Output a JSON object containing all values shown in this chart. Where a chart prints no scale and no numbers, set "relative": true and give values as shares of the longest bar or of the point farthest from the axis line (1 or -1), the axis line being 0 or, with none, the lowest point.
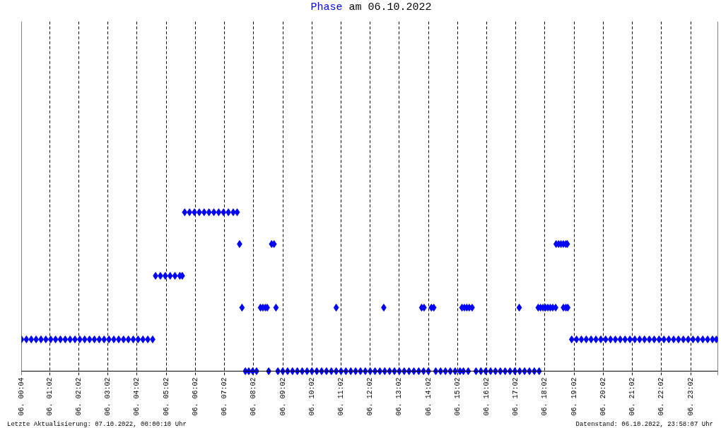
{
  "chart_data": {
    "type": "scatter",
    "title": "Phase am 06.10.2022",
    "annotations": [
      "Letzte Aktualisierung: 07.10.2022, 00:00:10 Uhr",
      "Datenstand: 06.10.2022, 23:58:07 Uhr"
    ],
    "relative": true,
    "grid": "x",
    "marker": "diamond",
    "xlim": [
      "2022-10-06T00:04",
      "2022-10-06T23:58"
    ],
    "xticks": [
      {
        "value": "2022-10-06T00:04",
        "label": "06. 00:04"
      },
      {
        "value": "2022-10-06T01:02",
        "label": "06. 01:02"
      },
      {
        "value": "2022-10-06T02:02",
        "label": "06. 02:02"
      },
      {
        "value": "2022-10-06T03:02",
        "label": "06. 03:02"
      },
      {
        "value": "2022-10-06T04:02",
        "label": "06. 04:02"
      },
      {
        "value": "2022-10-06T05:02",
        "label": "06. 05:02"
      },
      {
        "value": "2022-10-06T06:02",
        "label": "06. 06:02"
      },
      {
        "value": "2022-10-06T07:02",
        "label": "06. 07:02"
      },
      {
        "value": "2022-10-06T08:02",
        "label": "06. 08:02"
      },
      {
        "value": "2022-10-06T09:02",
        "label": "06. 09:02"
      },
      {
        "value": "2022-10-06T10:02",
        "label": "06. 10:02"
      },
      {
        "value": "2022-10-06T11:02",
        "label": "06. 11:02"
      },
      {
        "value": "2022-10-06T12:02",
        "label": "06. 12:02"
      },
      {
        "value": "2022-10-06T13:02",
        "label": "06. 13:02"
      },
      {
        "value": "2022-10-06T14:02",
        "label": "06. 14:02"
      },
      {
        "value": "2022-10-06T15:02",
        "label": "06. 15:02"
      },
      {
        "value": "2022-10-06T16:02",
        "label": "06. 16:02"
      },
      {
        "value": "2022-10-06T17:02",
        "label": "06. 17:02"
      },
      {
        "value": "2022-10-06T18:02",
        "label": "06. 18:02"
      },
      {
        "value": "2022-10-06T19:02",
        "label": "06. 19:02"
      },
      {
        "value": "2022-10-06T20:02",
        "label": "06. 20:02"
      },
      {
        "value": "2022-10-06T21:02",
        "label": "06. 21:02"
      },
      {
        "value": "2022-10-06T22:02",
        "label": "06. 22:02"
      },
      {
        "value": "2022-10-06T23:02",
        "label": "06. 23:02"
      }
    ],
    "series": [
      {
        "color": "#0000ff",
        "x": [
          "2022-10-06T00:04",
          "2022-10-06T00:14",
          "2022-10-06T00:24",
          "2022-10-06T00:34",
          "2022-10-06T00:44",
          "2022-10-06T00:54",
          "2022-10-06T01:04",
          "2022-10-06T01:14",
          "2022-10-06T01:24",
          "2022-10-06T01:34",
          "2022-10-06T01:44",
          "2022-10-06T01:54",
          "2022-10-06T02:04",
          "2022-10-06T02:14",
          "2022-10-06T02:24",
          "2022-10-06T02:34",
          "2022-10-06T02:44",
          "2022-10-06T02:54",
          "2022-10-06T03:04",
          "2022-10-06T03:14",
          "2022-10-06T03:24",
          "2022-10-06T03:34",
          "2022-10-06T03:44",
          "2022-10-06T03:54",
          "2022-10-06T04:04",
          "2022-10-06T04:14",
          "2022-10-06T04:24",
          "2022-10-06T04:34",
          "2022-10-06T04:40",
          "2022-10-06T04:50",
          "2022-10-06T05:00",
          "2022-10-06T05:10",
          "2022-10-06T05:20",
          "2022-10-06T05:30",
          "2022-10-06T05:35",
          "2022-10-06T05:40",
          "2022-10-06T05:50",
          "2022-10-06T06:00",
          "2022-10-06T06:10",
          "2022-10-06T06:20",
          "2022-10-06T06:30",
          "2022-10-06T06:40",
          "2022-10-06T06:50",
          "2022-10-06T07:00",
          "2022-10-06T07:10",
          "2022-10-06T07:20",
          "2022-10-06T07:28",
          "2022-10-06T07:33",
          "2022-10-06T07:38",
          "2022-10-06T07:45",
          "2022-10-06T07:52",
          "2022-10-06T08:00",
          "2022-10-06T08:08",
          "2022-10-06T08:16",
          "2022-10-06T08:21",
          "2022-10-06T08:26",
          "2022-10-06T08:30",
          "2022-10-06T08:33",
          "2022-10-06T08:39",
          "2022-10-06T08:44",
          "2022-10-06T08:48",
          "2022-10-06T08:52",
          "2022-10-06T09:02",
          "2022-10-06T09:12",
          "2022-10-06T09:22",
          "2022-10-06T09:32",
          "2022-10-06T09:42",
          "2022-10-06T09:52",
          "2022-10-06T10:02",
          "2022-10-06T10:12",
          "2022-10-06T10:22",
          "2022-10-06T10:32",
          "2022-10-06T10:42",
          "2022-10-06T10:52",
          "2022-10-06T11:02",
          "2022-10-06T11:12",
          "2022-10-06T11:22",
          "2022-10-06T11:32",
          "2022-10-06T11:42",
          "2022-10-06T11:52",
          "2022-10-06T12:02",
          "2022-10-06T12:12",
          "2022-10-06T12:22",
          "2022-10-06T12:32",
          "2022-10-06T12:42",
          "2022-10-06T12:52",
          "2022-10-06T13:02",
          "2022-10-06T13:12",
          "2022-10-06T13:22",
          "2022-10-06T13:32",
          "2022-10-06T13:42",
          "2022-10-06T13:52",
          "2022-10-06T14:02",
          "2022-10-06T10:52",
          "2022-10-06T12:30",
          "2022-10-06T13:48",
          "2022-10-06T13:53",
          "2022-10-06T14:08",
          "2022-10-06T14:13",
          "2022-10-06T14:17",
          "2022-10-06T14:27",
          "2022-10-06T14:37",
          "2022-10-06T14:47",
          "2022-10-06T14:57",
          "2022-10-06T15:07",
          "2022-10-06T15:14",
          "2022-10-06T15:11",
          "2022-10-06T15:16",
          "2022-10-06T15:21",
          "2022-10-06T15:26",
          "2022-10-06T15:32",
          "2022-10-06T15:24",
          "2022-10-06T15:40",
          "2022-10-06T15:50",
          "2022-10-06T16:00",
          "2022-10-06T16:10",
          "2022-10-06T16:20",
          "2022-10-06T16:30",
          "2022-10-06T16:40",
          "2022-10-06T16:50",
          "2022-10-06T17:00",
          "2022-10-06T17:10",
          "2022-10-06T17:20",
          "2022-10-06T17:30",
          "2022-10-06T17:40",
          "2022-10-06T17:50",
          "2022-10-06T17:09",
          "2022-10-06T17:48",
          "2022-10-06T17:53",
          "2022-10-06T17:58",
          "2022-10-06T18:03",
          "2022-10-06T18:08",
          "2022-10-06T18:13",
          "2022-10-06T18:18",
          "2022-10-06T18:24",
          "2022-10-06T18:25",
          "2022-10-06T18:30",
          "2022-10-06T18:35",
          "2022-10-06T18:40",
          "2022-10-06T18:45",
          "2022-10-06T18:48",
          "2022-10-06T18:40",
          "2022-10-06T18:45",
          "2022-10-06T18:49",
          "2022-10-06T18:57",
          "2022-10-06T19:07",
          "2022-10-06T19:17",
          "2022-10-06T19:27",
          "2022-10-06T19:37",
          "2022-10-06T19:47",
          "2022-10-06T19:57",
          "2022-10-06T20:07",
          "2022-10-06T20:17",
          "2022-10-06T20:27",
          "2022-10-06T20:37",
          "2022-10-06T20:47",
          "2022-10-06T20:57",
          "2022-10-06T21:07",
          "2022-10-06T21:17",
          "2022-10-06T21:27",
          "2022-10-06T21:37",
          "2022-10-06T21:47",
          "2022-10-06T21:57",
          "2022-10-06T22:07",
          "2022-10-06T22:17",
          "2022-10-06T22:27",
          "2022-10-06T22:37",
          "2022-10-06T22:47",
          "2022-10-06T22:57",
          "2022-10-06T23:07",
          "2022-10-06T23:17",
          "2022-10-06T23:27",
          "2022-10-06T23:37",
          "2022-10-06T23:47",
          "2022-10-06T23:55"
        ],
        "values": [
          0.2,
          0.2,
          0.2,
          0.2,
          0.2,
          0.2,
          0.2,
          0.2,
          0.2,
          0.2,
          0.2,
          0.2,
          0.2,
          0.2,
          0.2,
          0.2,
          0.2,
          0.2,
          0.2,
          0.2,
          0.2,
          0.2,
          0.2,
          0.2,
          0.2,
          0.2,
          0.2,
          0.2,
          0.6,
          0.6,
          0.6,
          0.6,
          0.6,
          0.6,
          0.6,
          1,
          1,
          1,
          1,
          1,
          1,
          1,
          1,
          1,
          1,
          1,
          1,
          0.8,
          0.4,
          0,
          0,
          0,
          0,
          0.4,
          0.4,
          0.4,
          0.4,
          0,
          0.8,
          0.8,
          0.4,
          0,
          0,
          0,
          0,
          0,
          0,
          0,
          0,
          0,
          0,
          0,
          0,
          0,
          0,
          0,
          0,
          0,
          0,
          0,
          0,
          0,
          0,
          0,
          0,
          0,
          0,
          0,
          0,
          0,
          0,
          0,
          0,
          0.4,
          0.4,
          0.4,
          0.4,
          0.4,
          0.4,
          0,
          0,
          0,
          0,
          0,
          0,
          0,
          0.4,
          0.4,
          0.4,
          0.4,
          0.4,
          0,
          0,
          0,
          0,
          0,
          0,
          0,
          0,
          0,
          0,
          0,
          0,
          0,
          0,
          0,
          0.4,
          0.4,
          0.4,
          0.4,
          0.4,
          0.4,
          0.4,
          0.4,
          0.4,
          0.8,
          0.8,
          0.8,
          0.8,
          0.8,
          0.8,
          0.4,
          0.4,
          0.4,
          0.2,
          0.2,
          0.2,
          0.2,
          0.2,
          0.2,
          0.2,
          0.2,
          0.2,
          0.2,
          0.2,
          0.2,
          0.2,
          0.2,
          0.2,
          0.2,
          0.2,
          0.2,
          0.2,
          0.2,
          0.2,
          0.2,
          0.2,
          0.2,
          0.2,
          0.2,
          0.2,
          0.2,
          0.2,
          0.2,
          0.2
        ]
      }
    ]
  }
}
